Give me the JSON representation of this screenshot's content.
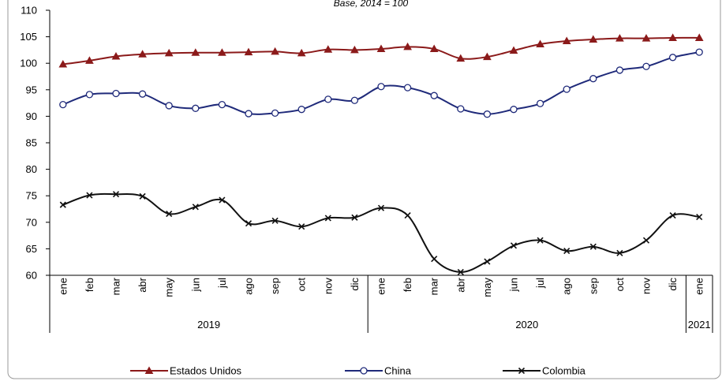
{
  "chart_data": {
    "type": "line",
    "title": "",
    "subtitle": "Base, 2014 = 100",
    "xlabel": "",
    "ylabel": "",
    "ylim": [
      60,
      110
    ],
    "yticks": [
      60,
      65,
      70,
      75,
      80,
      85,
      90,
      95,
      100,
      105,
      110
    ],
    "grid": false,
    "legend_position": "bottom",
    "categories": [
      "ene",
      "feb",
      "mar",
      "abr",
      "may",
      "jun",
      "jul",
      "ago",
      "sep",
      "oct",
      "nov",
      "dic",
      "ene",
      "feb",
      "mar",
      "abr",
      "may",
      "jun",
      "jul",
      "ago",
      "sep",
      "oct",
      "nov",
      "dic",
      "ene"
    ],
    "years": [
      {
        "label": "2019",
        "start": 0,
        "end": 11
      },
      {
        "label": "2020",
        "start": 12,
        "end": 23
      },
      {
        "label": "2021",
        "start": 24,
        "end": 24
      }
    ],
    "series": [
      {
        "name": "Estados Unidos",
        "color": "#8b1a1a",
        "marker": "triangle",
        "values": [
          99.8,
          100.5,
          101.3,
          101.7,
          101.9,
          102.0,
          102.0,
          102.1,
          102.2,
          101.9,
          102.6,
          102.5,
          102.7,
          103.1,
          102.7,
          100.9,
          101.2,
          102.4,
          103.6,
          104.2,
          104.5,
          104.7,
          104.7,
          104.8,
          104.8
        ]
      },
      {
        "name": "China",
        "color": "#1f2a7a",
        "marker": "circle",
        "values": [
          92.2,
          94.1,
          94.3,
          94.2,
          92.0,
          91.5,
          92.2,
          90.5,
          90.6,
          91.3,
          93.2,
          93.0,
          95.6,
          95.4,
          93.9,
          91.4,
          90.4,
          91.3,
          92.4,
          95.1,
          97.1,
          98.7,
          99.4,
          101.1,
          102.1
        ]
      },
      {
        "name": "Colombia",
        "color": "#111111",
        "marker": "x",
        "values": [
          73.3,
          75.1,
          75.3,
          74.9,
          71.6,
          72.9,
          74.2,
          69.8,
          70.3,
          69.2,
          70.8,
          70.9,
          72.7,
          71.3,
          63.1,
          60.6,
          62.6,
          65.6,
          66.6,
          64.6,
          65.4,
          64.2,
          66.6,
          71.3,
          71.0
        ]
      }
    ]
  }
}
